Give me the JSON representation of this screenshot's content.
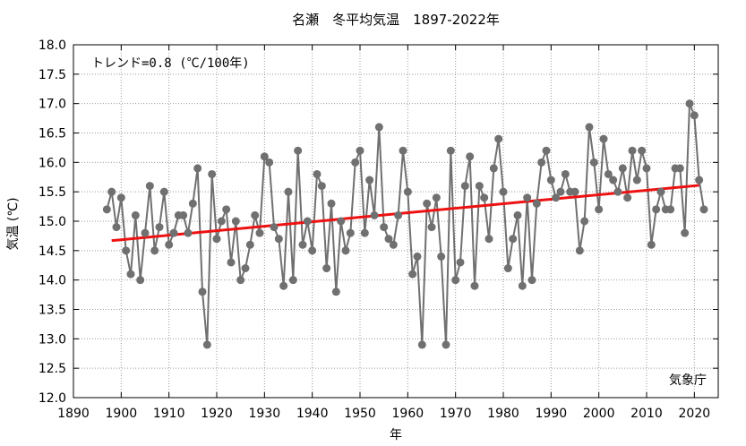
{
  "chart_data": {
    "type": "line",
    "title": "名瀬　冬平均気温　1897-2022年",
    "xlabel": "年",
    "ylabel": "気温 (℃)",
    "trend_label": "トレンド=0.8 (℃/100年)",
    "credit": "気象庁",
    "xlim": [
      1890,
      2025
    ],
    "ylim": [
      12.0,
      18.0
    ],
    "x_ticks": [
      1890,
      1900,
      1910,
      1920,
      1930,
      1940,
      1950,
      1960,
      1970,
      1980,
      1990,
      2000,
      2010,
      2020
    ],
    "y_ticks": [
      "12.0",
      "12.5",
      "13.0",
      "13.5",
      "14.0",
      "14.5",
      "15.0",
      "15.5",
      "16.0",
      "16.5",
      "17.0",
      "17.5",
      "18.0"
    ],
    "grid": true,
    "series": [
      {
        "color": "#707070",
        "x": [
          1897,
          1898,
          1899,
          1900,
          1901,
          1902,
          1903,
          1904,
          1905,
          1906,
          1907,
          1908,
          1909,
          1910,
          1911,
          1912,
          1913,
          1914,
          1915,
          1916,
          1917,
          1918,
          1919,
          1920,
          1921,
          1922,
          1923,
          1924,
          1925,
          1926,
          1927,
          1928,
          1929,
          1930,
          1931,
          1932,
          1933,
          1934,
          1935,
          1936,
          1937,
          1938,
          1939,
          1940,
          1941,
          1942,
          1943,
          1944,
          1945,
          1946,
          1947,
          1948,
          1949,
          1950,
          1951,
          1952,
          1953,
          1954,
          1955,
          1956,
          1957,
          1958,
          1959,
          1960,
          1961,
          1962,
          1963,
          1964,
          1965,
          1966,
          1967,
          1968,
          1969,
          1970,
          1971,
          1972,
          1973,
          1974,
          1975,
          1976,
          1977,
          1978,
          1979,
          1980,
          1981,
          1982,
          1983,
          1984,
          1985,
          1986,
          1987,
          1988,
          1989,
          1990,
          1991,
          1992,
          1993,
          1994,
          1995,
          1996,
          1997,
          1998,
          1999,
          2000,
          2001,
          2002,
          2003,
          2004,
          2005,
          2006,
          2007,
          2008,
          2009,
          2010,
          2011,
          2012,
          2013,
          2014,
          2015,
          2016,
          2017,
          2018,
          2019,
          2020,
          2021,
          2022
        ],
        "values": [
          15.2,
          15.5,
          14.9,
          15.4,
          14.5,
          14.1,
          15.1,
          14.0,
          14.8,
          15.6,
          14.5,
          14.9,
          15.5,
          14.6,
          14.8,
          15.1,
          15.1,
          14.8,
          15.3,
          15.9,
          13.8,
          12.9,
          15.8,
          14.7,
          15.0,
          15.2,
          14.3,
          15.0,
          14.0,
          14.2,
          14.6,
          15.1,
          14.8,
          16.1,
          16.0,
          14.9,
          14.7,
          13.9,
          15.5,
          14.0,
          16.2,
          14.6,
          15.0,
          14.5,
          15.8,
          15.6,
          14.2,
          15.3,
          13.8,
          15.0,
          14.5,
          14.8,
          16.0,
          16.2,
          14.8,
          15.7,
          15.1,
          16.6,
          14.9,
          14.7,
          14.6,
          15.1,
          16.2,
          15.5,
          14.1,
          14.4,
          12.9,
          15.3,
          14.9,
          15.4,
          14.4,
          12.9,
          16.2,
          14.0,
          14.3,
          15.6,
          16.1,
          13.9,
          15.6,
          15.4,
          14.7,
          15.9,
          16.4,
          15.5,
          14.2,
          14.7,
          15.1,
          13.9,
          15.4,
          14.0,
          15.3,
          16.0,
          16.2,
          15.7,
          15.4,
          15.5,
          15.8,
          15.5,
          15.5,
          14.5,
          15.0,
          16.6,
          16.0,
          15.2,
          16.4,
          15.8,
          15.7,
          15.5,
          15.9,
          15.4,
          16.2,
          15.7,
          16.2,
          15.9,
          14.6,
          15.2,
          15.5,
          15.2,
          15.2,
          15.9,
          15.9,
          14.8,
          17.0,
          16.8,
          15.7,
          15.2
        ]
      },
      {
        "color": "#ee1111",
        "x": [
          1898,
          2021
        ],
        "values": [
          14.67,
          15.61
        ]
      }
    ]
  }
}
